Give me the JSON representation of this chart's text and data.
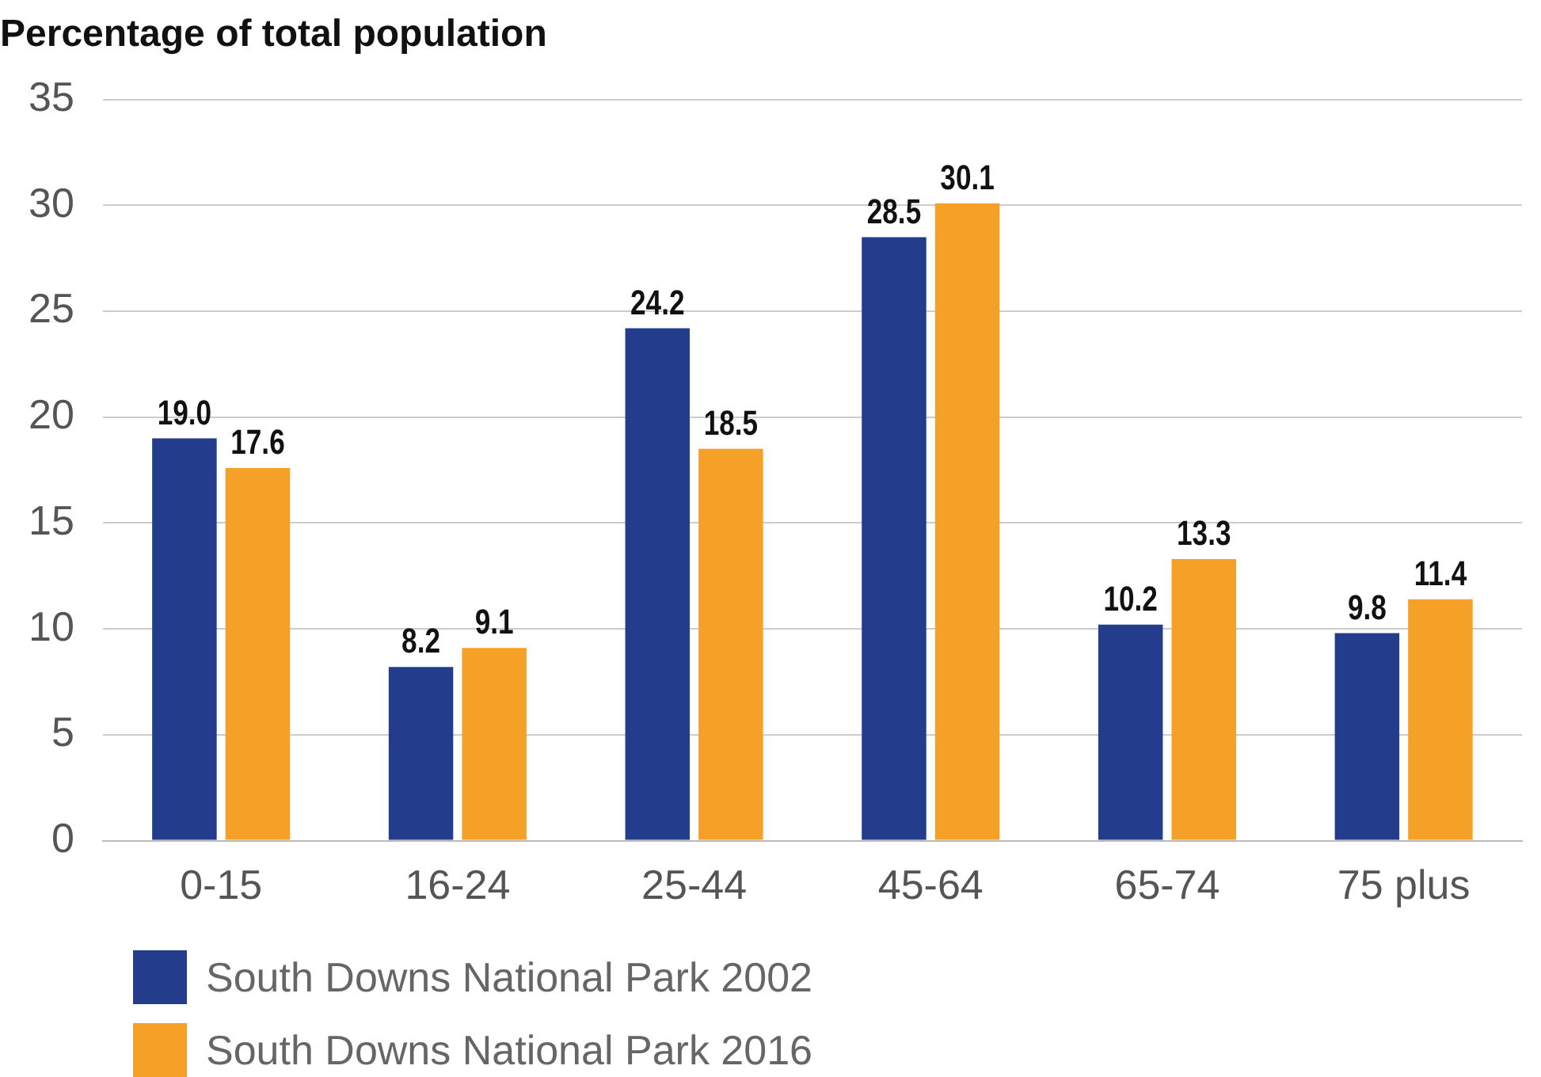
{
  "chart_data": {
    "type": "bar",
    "title": "Percentage of total population",
    "categories": [
      "0-15",
      "16-24",
      "25-44",
      "45-64",
      "65-74",
      "75 plus"
    ],
    "series": [
      {
        "name": "South Downs National Park 2002",
        "color": "#233c8c",
        "values": [
          19.0,
          8.2,
          24.2,
          28.5,
          10.2,
          9.8
        ],
        "value_labels": [
          "19.0",
          "8.2",
          "24.2",
          "28.5",
          "10.2",
          "9.8"
        ]
      },
      {
        "name": "South Downs National Park 2016",
        "color": "#f5a027",
        "values": [
          17.6,
          9.1,
          18.5,
          30.1,
          13.3,
          11.4
        ],
        "value_labels": [
          "17.6",
          "9.1",
          "18.5",
          "30.1",
          "13.3",
          "11.4"
        ]
      }
    ],
    "ylim": [
      0,
      35
    ],
    "yticks": [
      0,
      5,
      10,
      15,
      20,
      25,
      30,
      35
    ],
    "grid": "y",
    "legend": "bottom"
  }
}
